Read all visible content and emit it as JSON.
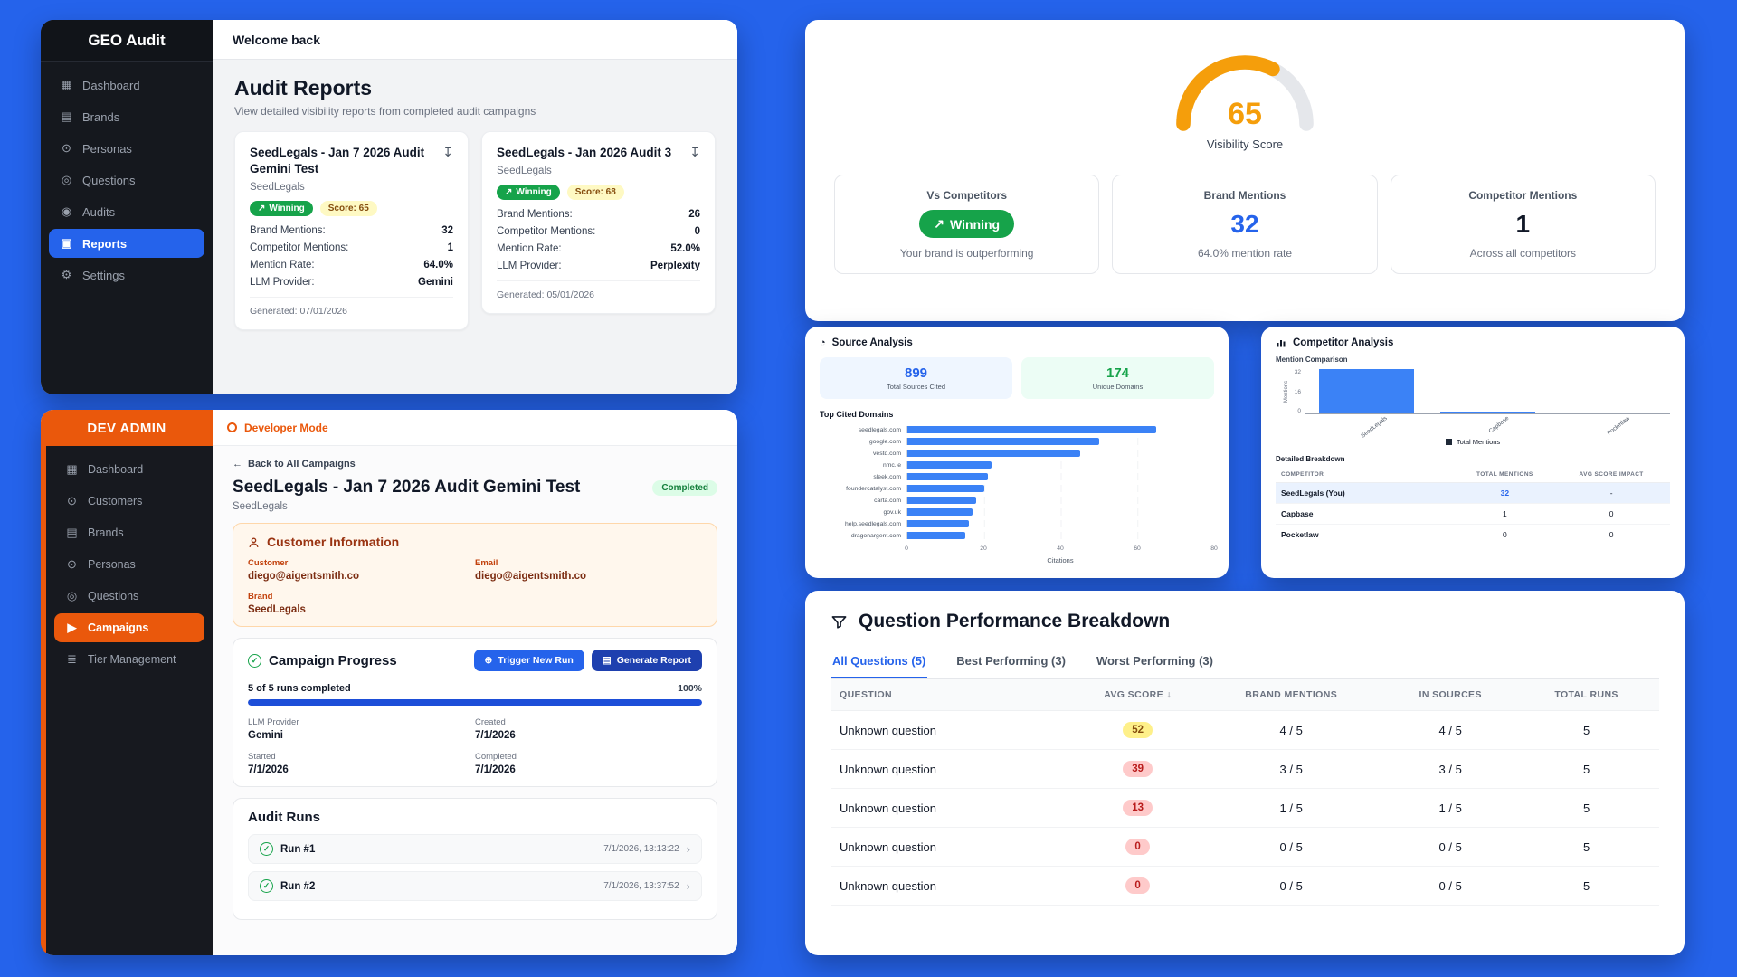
{
  "icons": {
    "trend_up": "↗",
    "download": "↧",
    "back_arrow": "←",
    "chevron_right": "›",
    "check": "✓",
    "plus": "⊕",
    "doc": "▤",
    "pie": "◔"
  },
  "geo_audit": {
    "app_title": "GEO Audit",
    "topbar": "Welcome back",
    "nav": [
      {
        "label": "Dashboard",
        "icon": "dashboard",
        "active": false
      },
      {
        "label": "Brands",
        "icon": "brands",
        "active": false
      },
      {
        "label": "Personas",
        "icon": "personas",
        "active": false
      },
      {
        "label": "Questions",
        "icon": "questions",
        "active": false
      },
      {
        "label": "Audits",
        "icon": "audits",
        "active": false
      },
      {
        "label": "Reports",
        "icon": "reports",
        "active": true
      },
      {
        "label": "Settings",
        "icon": "settings",
        "active": false
      }
    ],
    "page_title": "Audit Reports",
    "page_subtitle": "View detailed visibility reports from completed audit campaigns",
    "reports": [
      {
        "title": "SeedLegals - Jan 7 2026 Audit Gemini Test",
        "brand": "SeedLegals",
        "winning_label": "Winning",
        "score_label": "Score: 65",
        "stats": [
          {
            "label": "Brand Mentions:",
            "value": "32"
          },
          {
            "label": "Competitor Mentions:",
            "value": "1"
          },
          {
            "label": "Mention Rate:",
            "value": "64.0%"
          },
          {
            "label": "LLM Provider:",
            "value": "Gemini"
          }
        ],
        "generated": "Generated: 07/01/2026"
      },
      {
        "title": "SeedLegals - Jan 2026 Audit 3",
        "brand": "SeedLegals",
        "winning_label": "Winning",
        "score_label": "Score: 68",
        "stats": [
          {
            "label": "Brand Mentions:",
            "value": "26"
          },
          {
            "label": "Competitor Mentions:",
            "value": "0"
          },
          {
            "label": "Mention Rate:",
            "value": "52.0%"
          },
          {
            "label": "LLM Provider:",
            "value": "Perplexity"
          }
        ],
        "generated": "Generated: 05/01/2026"
      }
    ]
  },
  "dev_admin": {
    "app_title": "DEV ADMIN",
    "mode_label": "Developer Mode",
    "nav": [
      {
        "label": "Dashboard",
        "icon": "dashboard",
        "active": false
      },
      {
        "label": "Customers",
        "icon": "customers",
        "active": false
      },
      {
        "label": "Brands",
        "icon": "brands",
        "active": false
      },
      {
        "label": "Personas",
        "icon": "personas",
        "active": false
      },
      {
        "label": "Questions",
        "icon": "questions",
        "active": false
      },
      {
        "label": "Campaigns",
        "icon": "campaigns",
        "active": true
      },
      {
        "label": "Tier Management",
        "icon": "tier-management",
        "active": false
      }
    ],
    "back_link": "Back to All Campaigns",
    "campaign_title": "SeedLegals - Jan 7 2026 Audit Gemini Test",
    "campaign_status": "Completed",
    "campaign_brand": "SeedLegals",
    "customer_info": {
      "title": "Customer Information",
      "fields": [
        {
          "label": "Customer",
          "value": "diego@aigentsmith.co"
        },
        {
          "label": "Email",
          "value": "diego@aigentsmith.co"
        },
        {
          "label": "Brand",
          "value": "SeedLegals"
        }
      ]
    },
    "progress": {
      "title": "Campaign Progress",
      "trigger_button": "Trigger New Run",
      "report_button": "Generate Report",
      "runs_label": "5 of 5 runs completed",
      "percent_label": "100%",
      "percent": 100,
      "meta": [
        {
          "label": "LLM Provider",
          "value": "Gemini"
        },
        {
          "label": "Created",
          "value": "7/1/2026"
        },
        {
          "label": "Started",
          "value": "7/1/2026"
        },
        {
          "label": "Completed",
          "value": "7/1/2026"
        }
      ]
    },
    "audit_runs": {
      "title": "Audit Runs",
      "runs": [
        {
          "label": "Run #1",
          "timestamp": "7/1/2026, 13:13:22"
        },
        {
          "label": "Run #2",
          "timestamp": "7/1/2026, 13:37:52"
        }
      ]
    }
  },
  "visibility_panel": {
    "score": 65,
    "score_label": "Visibility Score",
    "cards": [
      {
        "title": "Vs Competitors",
        "badge": "Winning",
        "caption": "Your brand is outperforming"
      },
      {
        "title": "Brand Mentions",
        "value": "32",
        "caption": "64.0% mention rate"
      },
      {
        "title": "Competitor Mentions",
        "value": "1",
        "caption": "Across all competitors"
      }
    ]
  },
  "source_analysis": {
    "title": "Source Analysis",
    "total_sources": {
      "value": "899",
      "label": "Total Sources Cited"
    },
    "unique_domains": {
      "value": "174",
      "label": "Unique Domains"
    },
    "chart_title": "Top Cited Domains",
    "chart_data": {
      "type": "bar",
      "orientation": "horizontal",
      "categories": [
        "seedlegals.com",
        "google.com",
        "vestd.com",
        "nmc.ie",
        "sleek.com",
        "foundercatalyst.com",
        "carta.com",
        "gov.uk",
        "help.seedlegals.com",
        "dragonargent.com"
      ],
      "values": [
        65,
        50,
        45,
        22,
        21,
        20,
        18,
        17,
        16,
        15
      ],
      "xlabel": "Citations",
      "xlim": [
        0,
        80
      ],
      "xticks": [
        0,
        20,
        40,
        60,
        80
      ]
    }
  },
  "competitor_analysis": {
    "title": "Competitor Analysis",
    "chart_title": "Mention Comparison",
    "chart_data": {
      "type": "bar",
      "categories": [
        "SeedLegals",
        "Capbase",
        "Pocketlaw"
      ],
      "values": [
        32,
        1,
        0
      ],
      "ylabel": "Mentions",
      "yticks": [
        0,
        16,
        32
      ],
      "ylim": [
        0,
        32
      ],
      "legend": "Total Mentions"
    },
    "breakdown_title": "Detailed Breakdown",
    "table": {
      "headers": [
        "COMPETITOR",
        "TOTAL MENTIONS",
        "AVG SCORE IMPACT"
      ],
      "rows": [
        {
          "competitor": "SeedLegals (You)",
          "mentions": "32",
          "impact": "-",
          "highlight": true
        },
        {
          "competitor": "Capbase",
          "mentions": "1",
          "impact": "0",
          "highlight": false
        },
        {
          "competitor": "Pocketlaw",
          "mentions": "0",
          "impact": "0",
          "highlight": false
        }
      ]
    }
  },
  "question_breakdown": {
    "title": "Question Performance Breakdown",
    "tabs": [
      {
        "label": "All Questions (5)",
        "active": true
      },
      {
        "label": "Best Performing (3)",
        "active": false
      },
      {
        "label": "Worst Performing (3)",
        "active": false
      }
    ],
    "headers": [
      "QUESTION",
      "AVG SCORE ↓",
      "BRAND MENTIONS",
      "IN SOURCES",
      "TOTAL RUNS"
    ],
    "rows": [
      {
        "question": "Unknown question",
        "avg_score": "52",
        "score_tone": "yellow",
        "brand_mentions": "4 / 5",
        "in_sources": "4 / 5",
        "total_runs": "5"
      },
      {
        "question": "Unknown question",
        "avg_score": "39",
        "score_tone": "red",
        "brand_mentions": "3 / 5",
        "in_sources": "3 / 5",
        "total_runs": "5"
      },
      {
        "question": "Unknown question",
        "avg_score": "13",
        "score_tone": "red",
        "brand_mentions": "1 / 5",
        "in_sources": "1 / 5",
        "total_runs": "5"
      },
      {
        "question": "Unknown question",
        "avg_score": "0",
        "score_tone": "red",
        "brand_mentions": "0 / 5",
        "in_sources": "0 / 5",
        "total_runs": "5"
      },
      {
        "question": "Unknown question",
        "avg_score": "0",
        "score_tone": "red",
        "brand_mentions": "0 / 5",
        "in_sources": "0 / 5",
        "total_runs": "5"
      }
    ]
  }
}
